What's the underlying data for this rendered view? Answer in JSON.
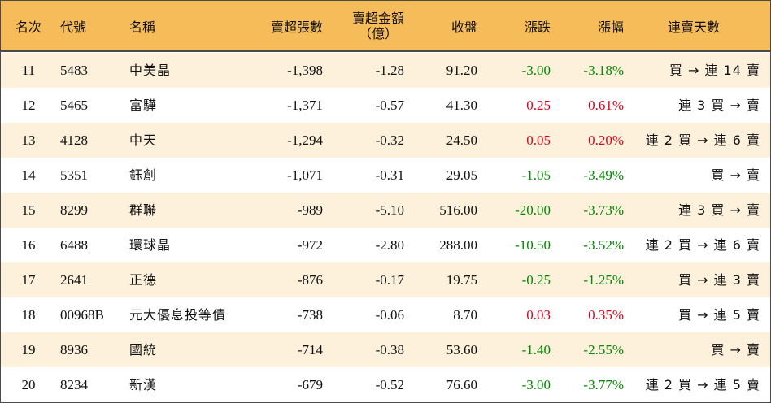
{
  "header": {
    "rank": "名次",
    "code": "代號",
    "name": "名稱",
    "net_sell_lots": "賣超張數",
    "net_sell_amount_line1": "賣超金額",
    "net_sell_amount_line2": "（億）",
    "close": "收盤",
    "change": "漲跌",
    "change_pct": "漲幅",
    "streak": "連賣天數"
  },
  "rows": [
    {
      "rank": "11",
      "code": "5483",
      "name": "中美晶",
      "lots": "-1,398",
      "amount": "-1.28",
      "close": "91.20",
      "change": "-3.00",
      "pct": "-3.18%",
      "dir": "down",
      "streak": "買 → 連 14 賣"
    },
    {
      "rank": "12",
      "code": "5465",
      "name": "富驊",
      "lots": "-1,371",
      "amount": "-0.57",
      "close": "41.30",
      "change": "0.25",
      "pct": "0.61%",
      "dir": "up",
      "streak": "連 3 買 → 賣"
    },
    {
      "rank": "13",
      "code": "4128",
      "name": "中天",
      "lots": "-1,294",
      "amount": "-0.32",
      "close": "24.50",
      "change": "0.05",
      "pct": "0.20%",
      "dir": "up",
      "streak": "連 2 買 → 連 6 賣"
    },
    {
      "rank": "14",
      "code": "5351",
      "name": "鈺創",
      "lots": "-1,071",
      "amount": "-0.31",
      "close": "29.05",
      "change": "-1.05",
      "pct": "-3.49%",
      "dir": "down",
      "streak": "買 → 賣"
    },
    {
      "rank": "15",
      "code": "8299",
      "name": "群聯",
      "lots": "-989",
      "amount": "-5.10",
      "close": "516.00",
      "change": "-20.00",
      "pct": "-3.73%",
      "dir": "down",
      "streak": "連 3 買 → 賣"
    },
    {
      "rank": "16",
      "code": "6488",
      "name": "環球晶",
      "lots": "-972",
      "amount": "-2.80",
      "close": "288.00",
      "change": "-10.50",
      "pct": "-3.52%",
      "dir": "down",
      "streak": "連 2 買 → 連 6 賣"
    },
    {
      "rank": "17",
      "code": "2641",
      "name": "正德",
      "lots": "-876",
      "amount": "-0.17",
      "close": "19.75",
      "change": "-0.25",
      "pct": "-1.25%",
      "dir": "down",
      "streak": "買 → 連 3 賣"
    },
    {
      "rank": "18",
      "code": "00968B",
      "name": "元大優息投等債",
      "lots": "-738",
      "amount": "-0.06",
      "close": "8.70",
      "change": "0.03",
      "pct": "0.35%",
      "dir": "up",
      "streak": "買 → 連 5 賣"
    },
    {
      "rank": "19",
      "code": "8936",
      "name": "國統",
      "lots": "-714",
      "amount": "-0.38",
      "close": "53.60",
      "change": "-1.40",
      "pct": "-2.55%",
      "dir": "down",
      "streak": "買 → 賣"
    },
    {
      "rank": "20",
      "code": "8234",
      "name": "新漢",
      "lots": "-679",
      "amount": "-0.52",
      "close": "76.60",
      "change": "-3.00",
      "pct": "-3.77%",
      "dir": "down",
      "streak": "連 2 買 → 連 5 賣"
    }
  ],
  "colors": {
    "header_bg": "#f7bc5a",
    "stripe_bg": "#fdf1dc",
    "up": "#e0001b",
    "down": "#008a00"
  }
}
